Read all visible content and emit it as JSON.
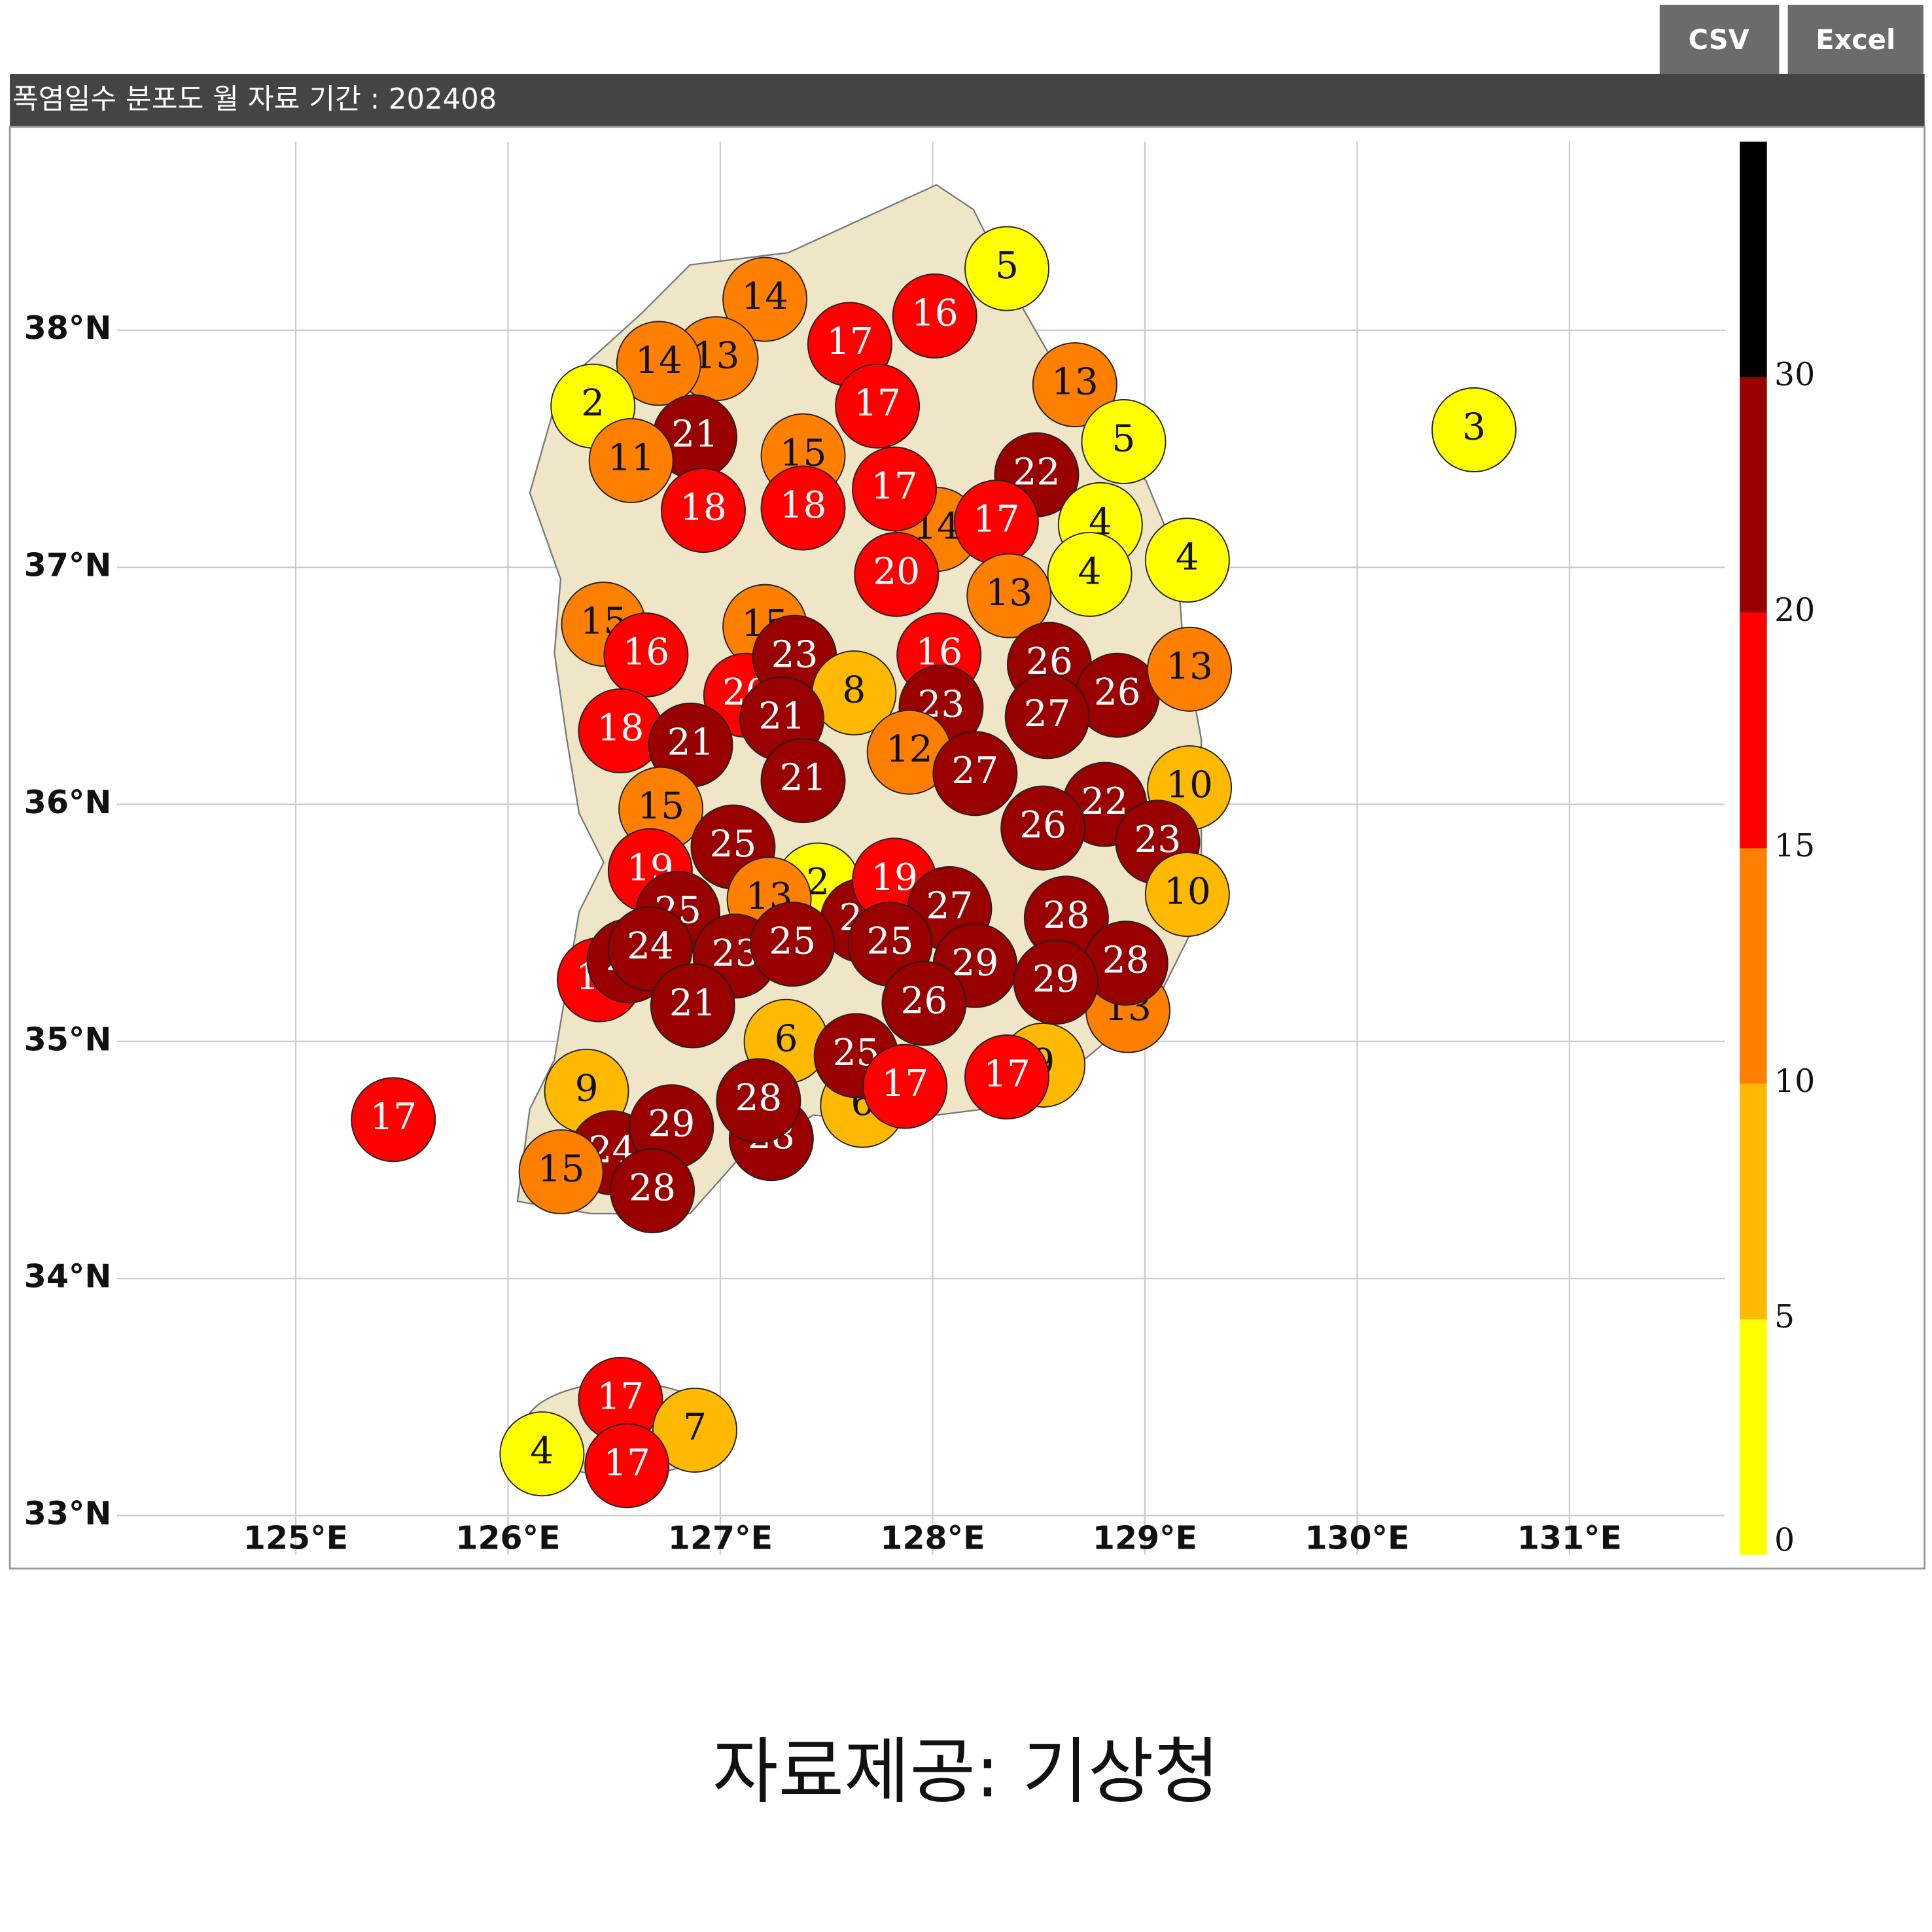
{
  "toolbar": {
    "buttons": [
      "CSV",
      "Excel"
    ]
  },
  "map": {
    "title": "폭염일수 분포도 월 자료 기간 : 202408",
    "lat_ticks": [
      {
        "value": 38,
        "label": "38°N"
      },
      {
        "value": 37,
        "label": "37°N"
      },
      {
        "value": 36,
        "label": "36°N"
      },
      {
        "value": 35,
        "label": "35°N"
      },
      {
        "value": 34,
        "label": "34°N"
      },
      {
        "value": 33,
        "label": "33°N"
      }
    ],
    "lon_ticks": [
      {
        "value": 125,
        "label": "125°E"
      },
      {
        "value": 126,
        "label": "126°E"
      },
      {
        "value": 127,
        "label": "127°E"
      },
      {
        "value": 128,
        "label": "128°E"
      },
      {
        "value": 129,
        "label": "129°E"
      },
      {
        "value": 130,
        "label": "130°E"
      },
      {
        "value": 131,
        "label": "131°E"
      }
    ],
    "colorbar": {
      "ticks": [
        0,
        5,
        10,
        15,
        20,
        30
      ],
      "colors": [
        "#ffff00",
        "#ffb900",
        "#ff7f00",
        "#ff0000",
        "#990000",
        "#000000"
      ]
    },
    "stations": [
      {
        "lon": 128.02,
        "lat": 37.16,
        "value": 14
      },
      {
        "lon": 126.45,
        "lat": 36.76,
        "value": 15
      },
      {
        "lon": 127.21,
        "lat": 36.75,
        "value": 15
      },
      {
        "lon": 127.12,
        "lat": 36.46,
        "value": 20
      },
      {
        "lon": 127.46,
        "lat": 35.66,
        "value": 2
      },
      {
        "lon": 127.67,
        "lat": 35.51,
        "value": 24
      },
      {
        "lon": 126.43,
        "lat": 35.26,
        "value": 17
      },
      {
        "lon": 126.57,
        "lat": 35.34,
        "value": 24
      },
      {
        "lon": 128.92,
        "lat": 35.13,
        "value": 13
      },
      {
        "lon": 128.52,
        "lat": 34.9,
        "value": 9
      },
      {
        "lon": 127.67,
        "lat": 34.73,
        "value": 6
      },
      {
        "lon": 128.35,
        "lat": 38.26,
        "value": 5
      },
      {
        "lon": 127.21,
        "lat": 38.13,
        "value": 14
      },
      {
        "lon": 128.01,
        "lat": 38.06,
        "value": 16
      },
      {
        "lon": 127.61,
        "lat": 37.94,
        "value": 17
      },
      {
        "lon": 126.98,
        "lat": 37.88,
        "value": 13
      },
      {
        "lon": 126.71,
        "lat": 37.86,
        "value": 14
      },
      {
        "lon": 128.67,
        "lat": 37.77,
        "value": 13
      },
      {
        "lon": 126.4,
        "lat": 37.68,
        "value": 2
      },
      {
        "lon": 127.74,
        "lat": 37.68,
        "value": 17
      },
      {
        "lon": 126.88,
        "lat": 37.55,
        "value": 21
      },
      {
        "lon": 128.9,
        "lat": 37.53,
        "value": 5
      },
      {
        "lon": 126.58,
        "lat": 37.45,
        "value": 11
      },
      {
        "lon": 127.39,
        "lat": 37.47,
        "value": 15
      },
      {
        "lon": 130.55,
        "lat": 37.58,
        "value": 3
      },
      {
        "lon": 128.49,
        "lat": 37.39,
        "value": 22
      },
      {
        "lon": 127.82,
        "lat": 37.33,
        "value": 17
      },
      {
        "lon": 126.92,
        "lat": 37.24,
        "value": 18
      },
      {
        "lon": 127.39,
        "lat": 37.25,
        "value": 18
      },
      {
        "lon": 128.3,
        "lat": 37.19,
        "value": 17
      },
      {
        "lon": 128.79,
        "lat": 37.18,
        "value": 4
      },
      {
        "lon": 127.83,
        "lat": 36.97,
        "value": 20
      },
      {
        "lon": 128.74,
        "lat": 36.97,
        "value": 4
      },
      {
        "lon": 129.2,
        "lat": 37.03,
        "value": 4
      },
      {
        "lon": 128.36,
        "lat": 36.88,
        "value": 13
      },
      {
        "lon": 126.65,
        "lat": 36.63,
        "value": 16
      },
      {
        "lon": 127.35,
        "lat": 36.62,
        "value": 23
      },
      {
        "lon": 128.03,
        "lat": 36.63,
        "value": 16
      },
      {
        "lon": 128.55,
        "lat": 36.59,
        "value": 26
      },
      {
        "lon": 127.63,
        "lat": 36.47,
        "value": 8
      },
      {
        "lon": 128.87,
        "lat": 36.46,
        "value": 26
      },
      {
        "lon": 129.21,
        "lat": 36.57,
        "value": 13
      },
      {
        "lon": 128.04,
        "lat": 36.41,
        "value": 23
      },
      {
        "lon": 127.29,
        "lat": 36.36,
        "value": 21
      },
      {
        "lon": 128.54,
        "lat": 36.37,
        "value": 27
      },
      {
        "lon": 126.53,
        "lat": 36.31,
        "value": 18
      },
      {
        "lon": 126.86,
        "lat": 36.25,
        "value": 21
      },
      {
        "lon": 127.89,
        "lat": 36.22,
        "value": 12
      },
      {
        "lon": 128.2,
        "lat": 36.13,
        "value": 27
      },
      {
        "lon": 127.39,
        "lat": 36.1,
        "value": 21
      },
      {
        "lon": 129.21,
        "lat": 36.07,
        "value": 10
      },
      {
        "lon": 126.72,
        "lat": 35.98,
        "value": 15
      },
      {
        "lon": 128.81,
        "lat": 36.0,
        "value": 22
      },
      {
        "lon": 128.52,
        "lat": 35.9,
        "value": 26
      },
      {
        "lon": 129.06,
        "lat": 35.84,
        "value": 23
      },
      {
        "lon": 127.06,
        "lat": 35.82,
        "value": 25
      },
      {
        "lon": 126.67,
        "lat": 35.72,
        "value": 19
      },
      {
        "lon": 127.82,
        "lat": 35.68,
        "value": 19
      },
      {
        "lon": 127.23,
        "lat": 35.6,
        "value": 13
      },
      {
        "lon": 129.2,
        "lat": 35.62,
        "value": 10
      },
      {
        "lon": 128.08,
        "lat": 35.56,
        "value": 27
      },
      {
        "lon": 126.8,
        "lat": 35.54,
        "value": 25
      },
      {
        "lon": 128.63,
        "lat": 35.52,
        "value": 28
      },
      {
        "lon": 126.67,
        "lat": 35.39,
        "value": 24
      },
      {
        "lon": 127.07,
        "lat": 35.36,
        "value": 23
      },
      {
        "lon": 127.34,
        "lat": 35.41,
        "value": 25
      },
      {
        "lon": 127.8,
        "lat": 35.41,
        "value": 25
      },
      {
        "lon": 128.2,
        "lat": 35.32,
        "value": 29
      },
      {
        "lon": 128.91,
        "lat": 35.33,
        "value": 28
      },
      {
        "lon": 126.87,
        "lat": 35.15,
        "value": 21
      },
      {
        "lon": 128.58,
        "lat": 35.25,
        "value": 29
      },
      {
        "lon": 127.96,
        "lat": 35.16,
        "value": 26
      },
      {
        "lon": 127.31,
        "lat": 35.0,
        "value": 6
      },
      {
        "lon": 127.64,
        "lat": 34.94,
        "value": 25
      },
      {
        "lon": 126.37,
        "lat": 34.79,
        "value": 9
      },
      {
        "lon": 128.35,
        "lat": 34.85,
        "value": 17
      },
      {
        "lon": 127.87,
        "lat": 34.81,
        "value": 17
      },
      {
        "lon": 125.46,
        "lat": 34.67,
        "value": 17
      },
      {
        "lon": 127.24,
        "lat": 34.59,
        "value": 28
      },
      {
        "lon": 127.18,
        "lat": 34.75,
        "value": 28
      },
      {
        "lon": 126.49,
        "lat": 34.53,
        "value": 24
      },
      {
        "lon": 126.77,
        "lat": 34.64,
        "value": 29
      },
      {
        "lon": 126.25,
        "lat": 34.45,
        "value": 15
      },
      {
        "lon": 126.68,
        "lat": 34.37,
        "value": 28
      },
      {
        "lon": 126.53,
        "lat": 33.49,
        "value": 17
      },
      {
        "lon": 126.88,
        "lat": 33.36,
        "value": 7
      },
      {
        "lon": 126.16,
        "lat": 33.26,
        "value": 4
      },
      {
        "lon": 126.56,
        "lat": 33.21,
        "value": 17
      }
    ]
  },
  "caption": "자료제공: 기상청"
}
